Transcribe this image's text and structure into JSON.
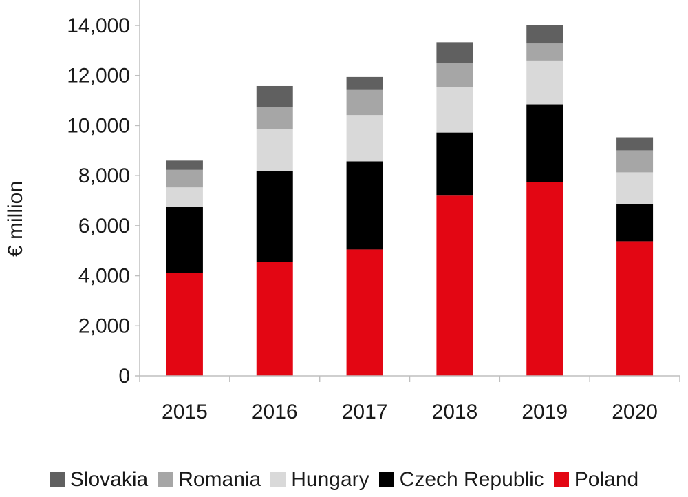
{
  "chart_data": {
    "type": "bar",
    "stacked": true,
    "title": "",
    "xlabel": "",
    "ylabel": "€ million",
    "ylim": [
      0,
      14000
    ],
    "yticks": [
      0,
      2000,
      4000,
      6000,
      8000,
      10000,
      12000,
      14000
    ],
    "ytick_labels": [
      "0",
      "2,000",
      "4,000",
      "6,000",
      "8,000",
      "10,000",
      "12,000",
      "14,000"
    ],
    "categories": [
      "2015",
      "2016",
      "2017",
      "2018",
      "2019",
      "2020"
    ],
    "series": [
      {
        "name": "Poland",
        "color": "#e30613",
        "values": [
          4100,
          4550,
          5050,
          7200,
          7750,
          5380
        ]
      },
      {
        "name": "Czech Republic",
        "color": "#000000",
        "values": [
          2650,
          3620,
          3520,
          2520,
          3100,
          1480
        ]
      },
      {
        "name": "Hungary",
        "color": "#d9d9d9",
        "values": [
          780,
          1700,
          1850,
          1830,
          1750,
          1270
        ]
      },
      {
        "name": "Romania",
        "color": "#a6a6a6",
        "values": [
          700,
          880,
          1000,
          940,
          680,
          880
        ]
      },
      {
        "name": "Slovakia",
        "color": "#606060",
        "values": [
          370,
          830,
          520,
          840,
          730,
          520
        ]
      }
    ],
    "legend_order": [
      "Slovakia",
      "Romania",
      "Hungary",
      "Czech Republic",
      "Poland"
    ],
    "legend_position": "bottom",
    "grid": false
  }
}
